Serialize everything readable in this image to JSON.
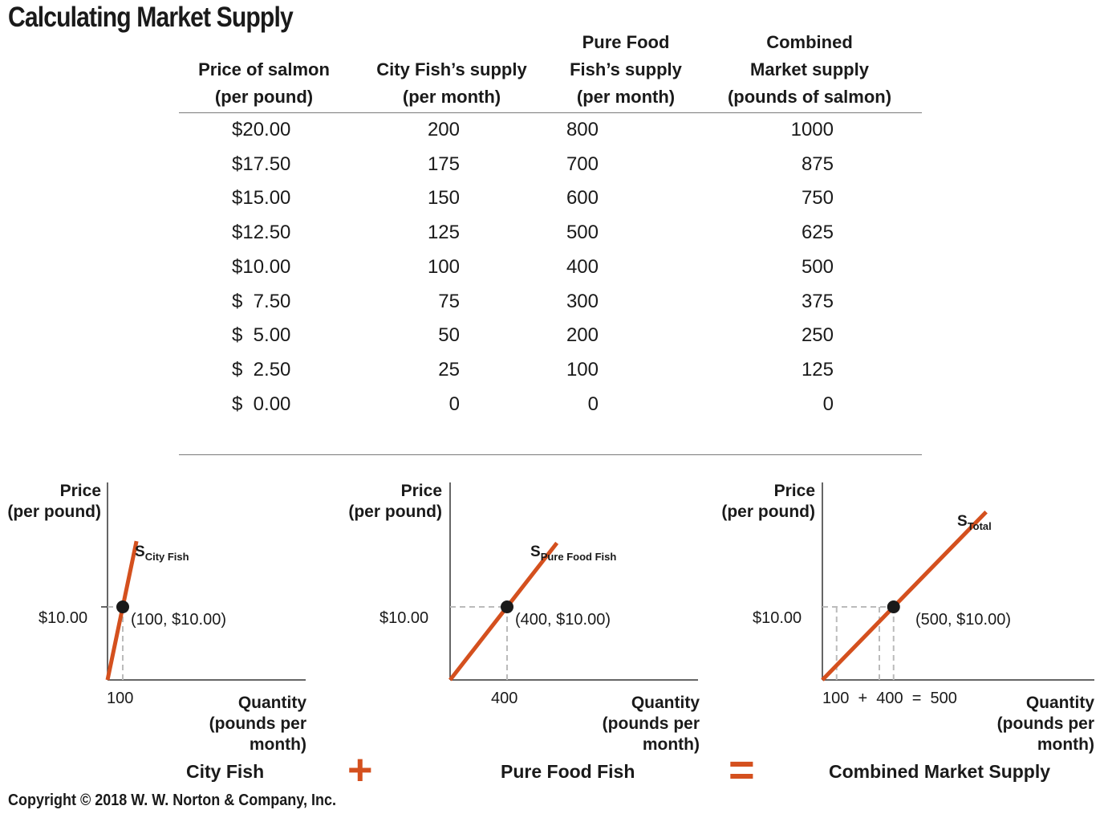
{
  "title": "Calculating Market Supply",
  "table": {
    "headers": [
      [
        "Price of salmon",
        "(per pound)"
      ],
      [
        "City Fish’s supply",
        "(per month)"
      ],
      [
        "Pure Food",
        "Fish’s supply",
        "(per month)"
      ],
      [
        "Combined",
        "Market supply",
        "(pounds of salmon)"
      ]
    ],
    "rows": [
      [
        "$20.00",
        "200",
        "800",
        "1000"
      ],
      [
        "$17.50",
        "175",
        "700",
        "875"
      ],
      [
        "$15.00",
        "150",
        "600",
        "750"
      ],
      [
        "$12.50",
        "125",
        "500",
        "625"
      ],
      [
        "$10.00",
        "100",
        "400",
        "500"
      ],
      [
        "$  7.50",
        "75",
        "300",
        "375"
      ],
      [
        "$  5.00",
        "50",
        "200",
        "250"
      ],
      [
        "$  2.50",
        "25",
        "100",
        "125"
      ],
      [
        "$  0.00",
        "0",
        "0",
        "0"
      ]
    ]
  },
  "chart_data": [
    {
      "type": "line",
      "caption": "City Fish",
      "ylabel": [
        "Price",
        "(per pound)"
      ],
      "xlabel": [
        "Quantity",
        "(pounds per",
        "month)"
      ],
      "series": [
        {
          "name": "City Fish",
          "x": [
            0,
            100,
            190
          ],
          "y": [
            0,
            10,
            19
          ]
        }
      ],
      "curve_label": {
        "main": "S",
        "sub": "City Fish"
      },
      "highlight": {
        "x": 100,
        "y": 10,
        "label": "(100, $10.00)"
      },
      "x_tick_labels": [
        "100"
      ],
      "y_tick_labels": [
        "$10.00"
      ],
      "color": "#d4501e"
    },
    {
      "type": "line",
      "caption": "Pure Food Fish",
      "ylabel": [
        "Price",
        "(per pound)"
      ],
      "xlabel": [
        "Quantity",
        "(pounds per",
        "month)"
      ],
      "series": [
        {
          "name": "Pure Food Fish",
          "x": [
            0,
            400,
            750
          ],
          "y": [
            0,
            10,
            18.75
          ]
        }
      ],
      "curve_label": {
        "main": "S",
        "sub": "Pure Food Fish"
      },
      "highlight": {
        "x": 400,
        "y": 10,
        "label": "(400, $10.00)"
      },
      "x_tick_labels": [
        "400"
      ],
      "y_tick_labels": [
        "$10.00"
      ],
      "color": "#d4501e"
    },
    {
      "type": "line",
      "caption": "Combined Market Supply",
      "ylabel": [
        "Price",
        "(per pound)"
      ],
      "xlabel": [
        "Quantity",
        "(pounds per",
        "month)"
      ],
      "series": [
        {
          "name": "Total",
          "x": [
            0,
            500,
            1150
          ],
          "y": [
            0,
            10,
            23
          ]
        }
      ],
      "curve_label": {
        "main": "S",
        "sub": "Total"
      },
      "highlight": {
        "x": 500,
        "y": 10,
        "label": "(500, $10.00)"
      },
      "guides_x": [
        100,
        400,
        500
      ],
      "x_tick_labels": [
        "100  +  400  =  500"
      ],
      "y_tick_labels": [
        "$10.00"
      ],
      "color": "#d4501e"
    }
  ],
  "operators": {
    "plus": "+",
    "equals": "="
  },
  "copyright": "Copyright © 2018 W. W. Norton & Company, Inc."
}
